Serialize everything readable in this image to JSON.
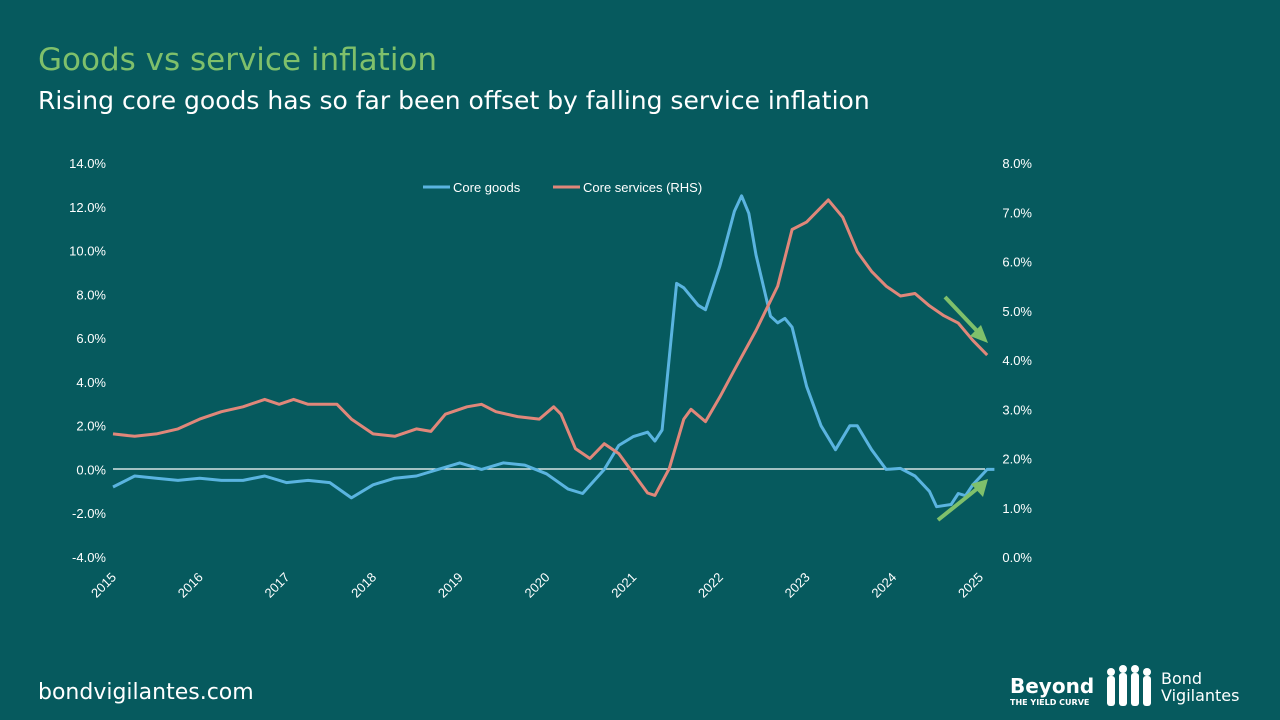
{
  "header": {
    "title": "Goods vs service inflation",
    "subtitle": "Rising core goods has so far been offset by falling service inflation"
  },
  "footer": {
    "site": "bondvigilantes.com"
  },
  "logos": {
    "beyond": "Beyond THE YIELD CURVE",
    "bond_vigilantes": "Bond Vigilantes"
  },
  "colors": {
    "background": "#065a5e",
    "title": "#7fc06b",
    "core_goods": "#5ab4e0",
    "core_services": "#e0877a",
    "arrow": "#7fc06b",
    "zero_line": "#ffffff"
  },
  "chart_data": {
    "type": "line",
    "title": "",
    "legend_position": "top-center",
    "grid": false,
    "x_ticks": [
      "2015",
      "2016",
      "2017",
      "2018",
      "2019",
      "2020",
      "2021",
      "2022",
      "2023",
      "2024",
      "2025"
    ],
    "y_left": {
      "ticks": [
        "14.0%",
        "12.0%",
        "10.0%",
        "8.0%",
        "6.0%",
        "4.0%",
        "2.0%",
        "0.0%",
        "-2.0%",
        "-4.0%"
      ],
      "range": [
        -4,
        14
      ]
    },
    "y_right": {
      "ticks": [
        "8.0%",
        "7.0%",
        "6.0%",
        "5.0%",
        "4.0%",
        "3.0%",
        "2.0%",
        "1.0%",
        "0.0%"
      ],
      "range": [
        0,
        8
      ]
    },
    "annotations": [
      "arrow down (core services falling)",
      "arrow up (core goods rising)"
    ],
    "series": [
      {
        "name": "Core goods",
        "axis": "left",
        "points": [
          [
            "2015-01",
            -0.8
          ],
          [
            "2015-04",
            -0.3
          ],
          [
            "2015-07",
            -0.4
          ],
          [
            "2015-10",
            -0.5
          ],
          [
            "2016-01",
            -0.4
          ],
          [
            "2016-04",
            -0.5
          ],
          [
            "2016-07",
            -0.5
          ],
          [
            "2016-10",
            -0.3
          ],
          [
            "2017-01",
            -0.6
          ],
          [
            "2017-04",
            -0.5
          ],
          [
            "2017-07",
            -0.6
          ],
          [
            "2017-10",
            -1.3
          ],
          [
            "2018-01",
            -0.7
          ],
          [
            "2018-04",
            -0.4
          ],
          [
            "2018-07",
            -0.3
          ],
          [
            "2018-10",
            0.0
          ],
          [
            "2019-01",
            0.3
          ],
          [
            "2019-04",
            0.0
          ],
          [
            "2019-07",
            0.3
          ],
          [
            "2019-10",
            0.2
          ],
          [
            "2020-01",
            -0.2
          ],
          [
            "2020-04",
            -0.9
          ],
          [
            "2020-06",
            -1.1
          ],
          [
            "2020-09",
            0.0
          ],
          [
            "2020-11",
            1.1
          ],
          [
            "2021-01",
            1.5
          ],
          [
            "2021-03",
            1.7
          ],
          [
            "2021-04",
            1.3
          ],
          [
            "2021-05",
            1.8
          ],
          [
            "2021-07",
            8.5
          ],
          [
            "2021-08",
            8.3
          ],
          [
            "2021-10",
            7.5
          ],
          [
            "2021-11",
            7.3
          ],
          [
            "2022-01",
            9.3
          ],
          [
            "2022-03",
            11.8
          ],
          [
            "2022-04",
            12.5
          ],
          [
            "2022-05",
            11.7
          ],
          [
            "2022-06",
            9.8
          ],
          [
            "2022-08",
            7.0
          ],
          [
            "2022-09",
            6.7
          ],
          [
            "2022-10",
            6.9
          ],
          [
            "2022-11",
            6.5
          ],
          [
            "2023-01",
            3.8
          ],
          [
            "2023-03",
            2.0
          ],
          [
            "2023-05",
            0.9
          ],
          [
            "2023-07",
            2.0
          ],
          [
            "2023-08",
            2.0
          ],
          [
            "2023-10",
            0.9
          ],
          [
            "2023-12",
            0.0
          ],
          [
            "2024-02",
            0.05
          ],
          [
            "2024-04",
            -0.3
          ],
          [
            "2024-06",
            -1.0
          ],
          [
            "2024-07",
            -1.7
          ],
          [
            "2024-09",
            -1.6
          ],
          [
            "2024-10",
            -1.1
          ],
          [
            "2024-11",
            -1.2
          ],
          [
            "2024-12",
            -0.7
          ],
          [
            "2025-02",
            0.0
          ],
          [
            "2025-03",
            0.0
          ]
        ]
      },
      {
        "name": "Core services (RHS)",
        "axis": "right",
        "points": [
          [
            "2015-01",
            2.5
          ],
          [
            "2015-04",
            2.45
          ],
          [
            "2015-07",
            2.5
          ],
          [
            "2015-10",
            2.6
          ],
          [
            "2016-01",
            2.8
          ],
          [
            "2016-04",
            2.95
          ],
          [
            "2016-07",
            3.05
          ],
          [
            "2016-10",
            3.2
          ],
          [
            "2016-12",
            3.1
          ],
          [
            "2017-02",
            3.2
          ],
          [
            "2017-04",
            3.1
          ],
          [
            "2017-06",
            3.1
          ],
          [
            "2017-08",
            3.1
          ],
          [
            "2017-10",
            2.8
          ],
          [
            "2018-01",
            2.5
          ],
          [
            "2018-04",
            2.45
          ],
          [
            "2018-07",
            2.6
          ],
          [
            "2018-09",
            2.55
          ],
          [
            "2018-11",
            2.9
          ],
          [
            "2019-02",
            3.05
          ],
          [
            "2019-04",
            3.1
          ],
          [
            "2019-06",
            2.95
          ],
          [
            "2019-09",
            2.85
          ],
          [
            "2019-12",
            2.8
          ],
          [
            "2020-02",
            3.05
          ],
          [
            "2020-03",
            2.9
          ],
          [
            "2020-05",
            2.2
          ],
          [
            "2020-07",
            2.0
          ],
          [
            "2020-09",
            2.3
          ],
          [
            "2020-11",
            2.1
          ],
          [
            "2021-01",
            1.7
          ],
          [
            "2021-03",
            1.3
          ],
          [
            "2021-04",
            1.25
          ],
          [
            "2021-06",
            1.8
          ],
          [
            "2021-08",
            2.8
          ],
          [
            "2021-09",
            3.0
          ],
          [
            "2021-11",
            2.75
          ],
          [
            "2022-01",
            3.25
          ],
          [
            "2022-03",
            3.8
          ],
          [
            "2022-06",
            4.6
          ],
          [
            "2022-09",
            5.5
          ],
          [
            "2022-11",
            6.65
          ],
          [
            "2023-01",
            6.8
          ],
          [
            "2023-04",
            7.25
          ],
          [
            "2023-06",
            6.9
          ],
          [
            "2023-08",
            6.2
          ],
          [
            "2023-10",
            5.8
          ],
          [
            "2023-12",
            5.5
          ],
          [
            "2024-02",
            5.3
          ],
          [
            "2024-04",
            5.35
          ],
          [
            "2024-06",
            5.1
          ],
          [
            "2024-08",
            4.9
          ],
          [
            "2024-10",
            4.75
          ],
          [
            "2024-12",
            4.4
          ],
          [
            "2025-02",
            4.1
          ]
        ]
      }
    ]
  }
}
